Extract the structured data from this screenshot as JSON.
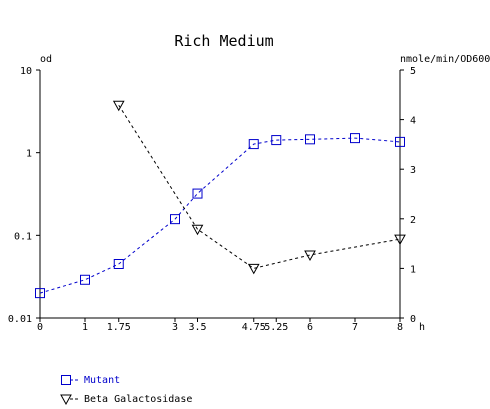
{
  "chart_data": {
    "type": "line",
    "title": "Rich Medium",
    "y_label": "od",
    "y2_label": "nmole/min/OD600",
    "x_label": "h",
    "xlim": [
      0,
      8
    ],
    "xticks": [
      0,
      1,
      1.75,
      3,
      3.5,
      4.75,
      5.25,
      6,
      7,
      8
    ],
    "ylim": [
      0.01,
      10
    ],
    "yticks": [
      0.01,
      0.1,
      1,
      10
    ],
    "y_scale": "log",
    "y2lim": [
      0,
      5
    ],
    "y2ticks": [
      0,
      1,
      2,
      3,
      4,
      5
    ],
    "series": [
      {
        "name": "Mutant",
        "color": "#0000cc",
        "marker": "square",
        "x": [
          0,
          1,
          1.75,
          3,
          3.5,
          4.75,
          5.25,
          6,
          7,
          8
        ],
        "values": [
          0.02,
          0.029,
          0.045,
          0.157,
          0.32,
          1.27,
          1.42,
          1.45,
          1.5,
          1.35
        ]
      },
      {
        "name": "Beta Galactosidase",
        "color": "#000000",
        "marker": "triangle-down",
        "axis": "y2",
        "x": [
          1.75,
          3.5,
          4.75,
          6,
          8
        ],
        "values": [
          4.29,
          1.79,
          1.0,
          1.27,
          1.59
        ]
      }
    ]
  }
}
